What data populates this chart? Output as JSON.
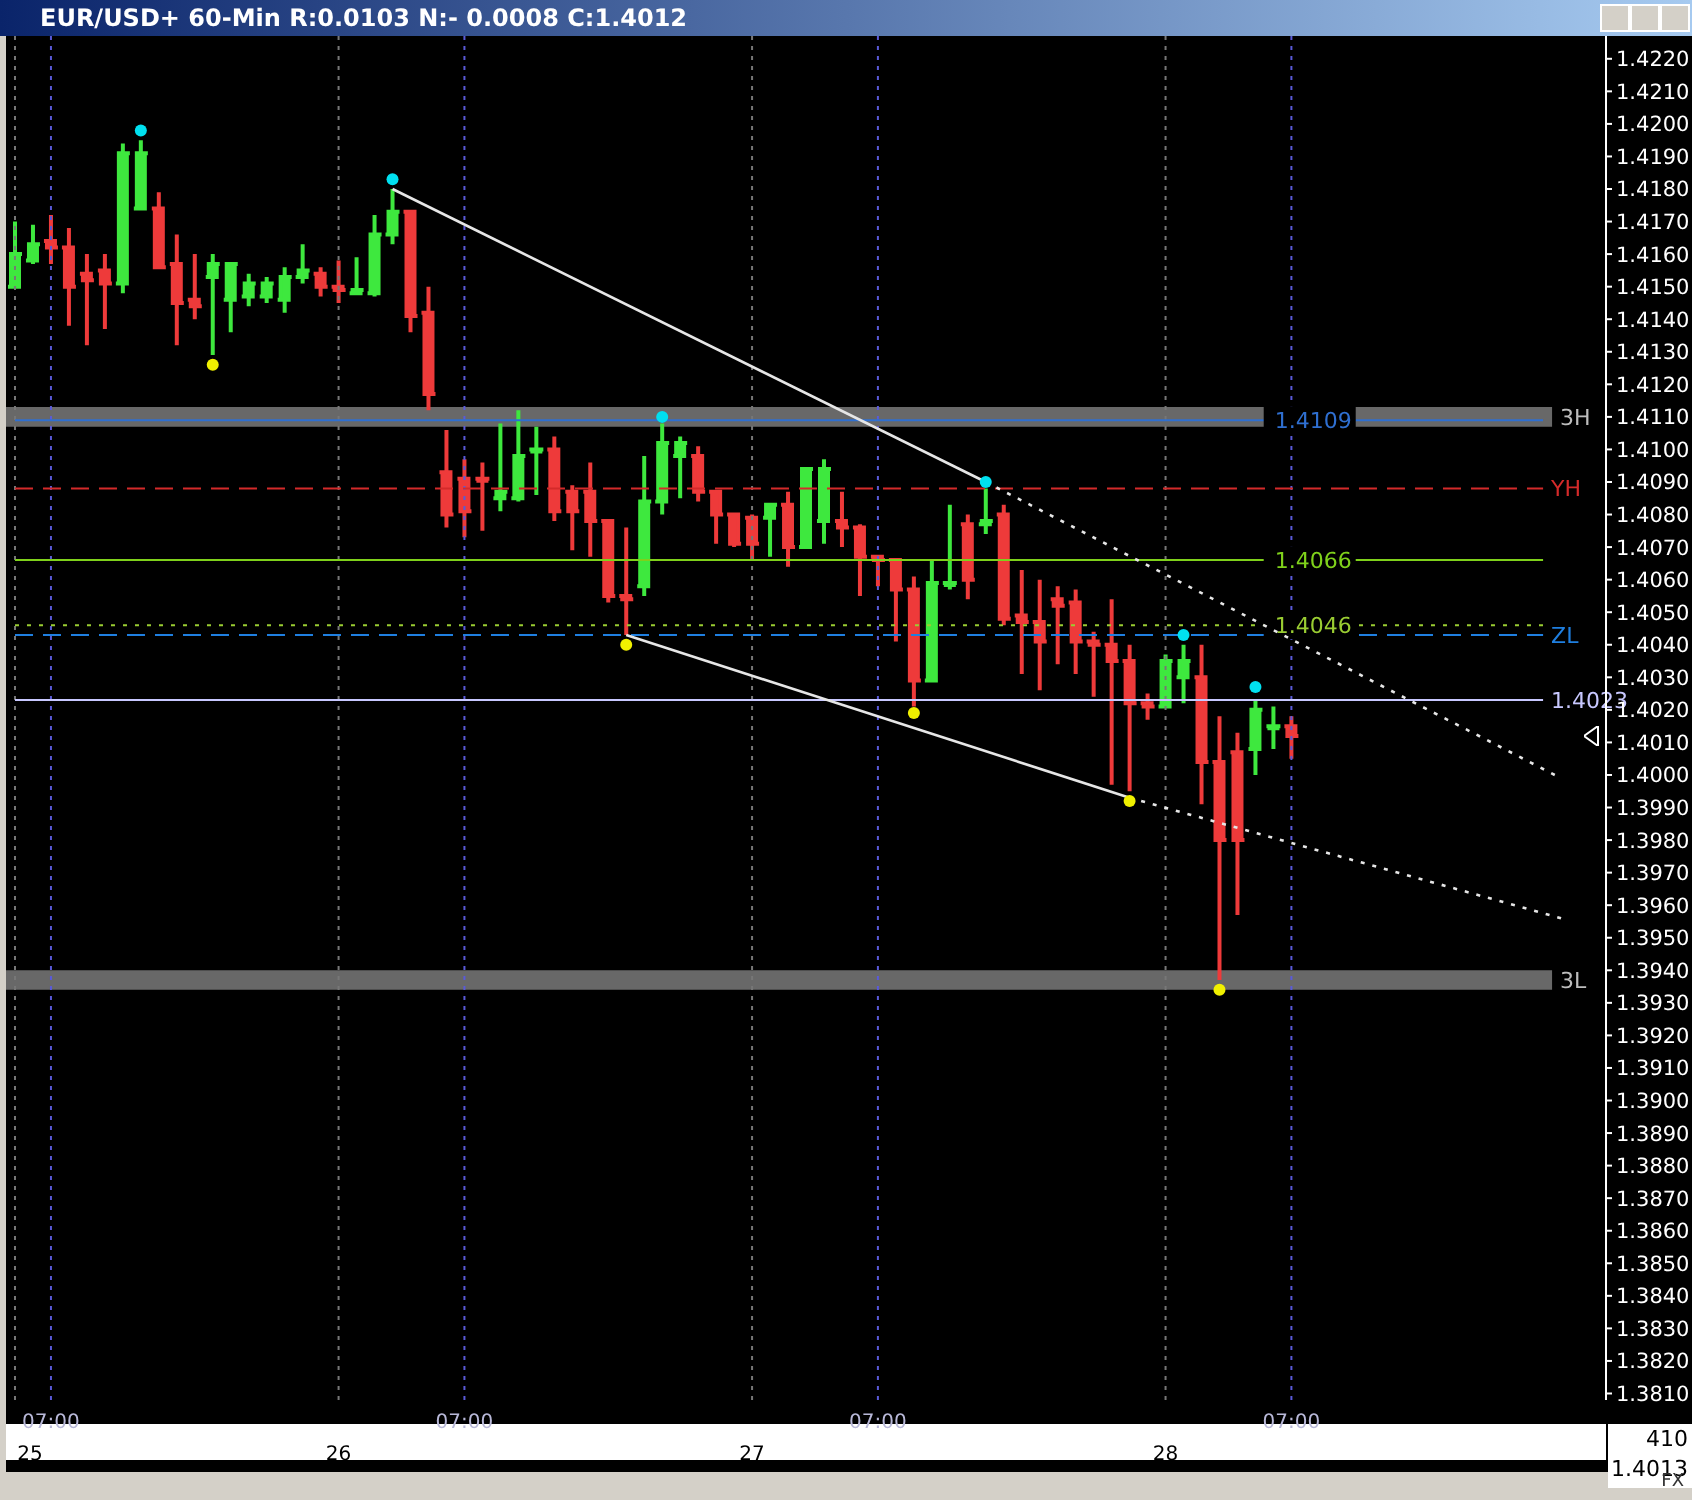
{
  "chart_data": {
    "type": "candlestick",
    "title": "EUR/USD+ 60-Min R:0.0103 N:- 0.0008 C:1.4012",
    "categories": [
      "25",
      null,
      "07:00",
      null,
      null,
      null,
      null,
      null,
      null,
      null,
      null,
      null,
      null,
      null,
      null,
      null,
      null,
      null,
      "26",
      null,
      null,
      null,
      null,
      null,
      null,
      "07:00",
      null,
      null,
      null,
      null,
      null,
      null,
      null,
      null,
      null,
      null,
      null,
      null,
      null,
      null,
      null,
      "27",
      null,
      null,
      null,
      null,
      null,
      null,
      "07:00",
      null,
      null,
      null,
      null,
      null,
      null,
      null,
      null,
      null,
      null,
      null,
      null,
      null,
      null,
      null,
      "28",
      null,
      null,
      null,
      null,
      null,
      null,
      "07:00",
      null,
      null,
      null,
      null,
      null,
      null,
      null,
      null,
      null,
      null,
      null,
      null,
      null,
      null,
      null,
      null,
      null
    ],
    "ohlc": [
      [
        1.415,
        1.417,
        1.415,
        1.416
      ],
      [
        1.4158,
        1.4169,
        1.4157,
        1.4163
      ],
      [
        1.4164,
        1.4172,
        1.4157,
        1.4162
      ],
      [
        1.4162,
        1.4168,
        1.4138,
        1.415
      ],
      [
        1.4154,
        1.416,
        1.4132,
        1.4152
      ],
      [
        1.4155,
        1.416,
        1.4137,
        1.4151
      ],
      [
        1.4151,
        1.4194,
        1.4148,
        1.4191
      ],
      [
        1.4174,
        1.4195,
        1.4174,
        1.4191
      ],
      [
        1.4174,
        1.4179,
        1.4156,
        1.4156
      ],
      [
        1.4157,
        1.4166,
        1.4132,
        1.4145
      ],
      [
        1.4146,
        1.416,
        1.414,
        1.4144
      ],
      [
        1.4153,
        1.416,
        1.4129,
        1.4157
      ],
      [
        1.4146,
        1.4157,
        1.4136,
        1.4157
      ],
      [
        1.4147,
        1.4154,
        1.4144,
        1.4151
      ],
      [
        1.4147,
        1.4153,
        1.4145,
        1.4151
      ],
      [
        1.4146,
        1.4156,
        1.4142,
        1.4153
      ],
      [
        1.4153,
        1.4163,
        1.4151,
        1.4155
      ],
      [
        1.4154,
        1.4156,
        1.4147,
        1.415
      ],
      [
        1.415,
        1.4158,
        1.4145,
        1.4149
      ],
      [
        1.4148,
        1.4159,
        1.4148,
        1.4149
      ],
      [
        1.4148,
        1.4172,
        1.4147,
        1.4166
      ],
      [
        1.4166,
        1.418,
        1.4163,
        1.4173
      ],
      [
        1.4173,
        1.4173,
        1.4136,
        1.4141
      ],
      [
        1.4142,
        1.415,
        1.4112,
        1.4117
      ],
      [
        1.4093,
        1.4106,
        1.4076,
        1.408
      ],
      [
        1.4091,
        1.4097,
        1.4073,
        1.4081
      ],
      [
        1.4091,
        1.4096,
        1.4075,
        1.4091
      ],
      [
        1.4085,
        1.4108,
        1.4081,
        1.4087
      ],
      [
        1.4085,
        1.4112,
        1.4084,
        1.4098
      ],
      [
        1.41,
        1.4107,
        1.4086,
        1.41
      ],
      [
        1.41,
        1.4104,
        1.4078,
        1.4081
      ],
      [
        1.4087,
        1.4089,
        1.4069,
        1.4081
      ],
      [
        1.4087,
        1.4096,
        1.4067,
        1.4078
      ],
      [
        1.4078,
        1.4078,
        1.4053,
        1.4055
      ],
      [
        1.4055,
        1.4076,
        1.4043,
        1.4054
      ],
      [
        1.4058,
        1.4098,
        1.4055,
        1.4084
      ],
      [
        1.4084,
        1.4108,
        1.408,
        1.4102
      ],
      [
        1.4098,
        1.4104,
        1.4085,
        1.4102
      ],
      [
        1.4098,
        1.4101,
        1.4084,
        1.4087
      ],
      [
        1.4087,
        1.4087,
        1.4071,
        1.408
      ],
      [
        1.408,
        1.408,
        1.407,
        1.4071
      ],
      [
        1.4079,
        1.408,
        1.4066,
        1.4071
      ],
      [
        1.4079,
        1.4083,
        1.4067,
        1.4083
      ],
      [
        1.4083,
        1.4087,
        1.4064,
        1.407
      ],
      [
        1.407,
        1.4094,
        1.407,
        1.4094
      ],
      [
        1.4078,
        1.4097,
        1.4071,
        1.4094
      ],
      [
        1.4078,
        1.4087,
        1.407,
        1.4076
      ],
      [
        1.4076,
        1.4077,
        1.4055,
        1.4067
      ],
      [
        1.4067,
        1.4067,
        1.4058,
        1.4066
      ],
      [
        1.4066,
        1.4066,
        1.4041,
        1.4057
      ],
      [
        1.4057,
        1.4061,
        1.4021,
        1.4029
      ],
      [
        1.4029,
        1.4066,
        1.4029,
        1.4059
      ],
      [
        1.4059,
        1.4083,
        1.4057,
        1.4059
      ],
      [
        1.4077,
        1.408,
        1.4054,
        1.406
      ],
      [
        1.4077,
        1.4088,
        1.4074,
        1.4078
      ],
      [
        1.408,
        1.4083,
        1.4046,
        1.4048
      ],
      [
        1.4049,
        1.4063,
        1.4031,
        1.4047
      ],
      [
        1.4047,
        1.406,
        1.4026,
        1.4041
      ],
      [
        1.4054,
        1.4058,
        1.4034,
        1.4052
      ],
      [
        1.4053,
        1.4057,
        1.4031,
        1.4041
      ],
      [
        1.4041,
        1.4044,
        1.4024,
        1.404
      ],
      [
        1.404,
        1.4054,
        1.3997,
        1.4035
      ],
      [
        1.4035,
        1.404,
        1.3995,
        1.4022
      ],
      [
        1.4022,
        1.4025,
        1.4017,
        1.4021
      ],
      [
        1.4021,
        1.4037,
        1.4021,
        1.4035
      ],
      [
        1.403,
        1.404,
        1.4022,
        1.4035
      ],
      [
        1.403,
        1.404,
        1.3991,
        1.4004
      ],
      [
        1.4004,
        1.4018,
        1.3937,
        1.398
      ],
      [
        1.4007,
        1.4013,
        1.3957,
        1.398
      ],
      [
        1.4008,
        1.4023,
        1.4,
        1.402
      ],
      [
        1.4015,
        1.4021,
        1.4008,
        1.4015
      ],
      [
        1.4015,
        1.4018,
        1.4005,
        1.4012
      ],
      null,
      null,
      null,
      null,
      null,
      null,
      null,
      null,
      null,
      null,
      null,
      null,
      null,
      null,
      null,
      null,
      null
    ],
    "colors": [
      "#3ee83e",
      "#3ee83e",
      "#ee3a3a",
      "#ee3a3a",
      "#ee3a3a",
      "#ee3a3a",
      "#3ee83e",
      "#3ee83e",
      "#ee3a3a",
      "#ee3a3a",
      "#ee3a3a",
      "#3ee83e",
      "#3ee83e",
      "#3ee83e",
      "#3ee83e",
      "#3ee83e",
      "#3ee83e",
      "#ee3a3a",
      "#ee3a3a",
      "#3ee83e",
      "#3ee83e",
      "#3ee83e",
      "#ee3a3a",
      "#ee3a3a",
      "#ee3a3a",
      "#ee3a3a",
      "#ee3a3a",
      "#3ee83e",
      "#3ee83e",
      "#3ee83e",
      "#ee3a3a",
      "#ee3a3a",
      "#ee3a3a",
      "#ee3a3a",
      "#ee3a3a",
      "#3ee83e",
      "#3ee83e",
      "#3ee83e",
      "#ee3a3a",
      "#ee3a3a",
      "#ee3a3a",
      "#ee3a3a",
      "#3ee83e",
      "#ee3a3a",
      "#3ee83e",
      "#3ee83e",
      "#ee3a3a",
      "#ee3a3a",
      "#ee3a3a",
      "#ee3a3a",
      "#ee3a3a",
      "#3ee83e",
      "#3ee83e",
      "#ee3a3a",
      "#3ee83e",
      "#ee3a3a",
      "#ee3a3a",
      "#ee3a3a",
      "#ee3a3a",
      "#ee3a3a",
      "#ee3a3a",
      "#ee3a3a",
      "#ee3a3a",
      "#ee3a3a",
      "#3ee83e",
      "#3ee83e",
      "#ee3a3a",
      "#ee3a3a",
      "#ee3a3a",
      "#3ee83e",
      "#3ee83e",
      "#ee3a3a",
      null,
      null,
      null,
      null,
      null,
      null,
      null,
      null,
      null,
      null,
      null,
      null,
      null,
      null,
      null,
      null,
      null
    ],
    "series": [
      {
        "type": "line",
        "color": "#e6e6e6",
        "line_style": "solid",
        "values": [
          null,
          null,
          null,
          null,
          null,
          null,
          null,
          null,
          null,
          null,
          null,
          null,
          null,
          null,
          null,
          null,
          null,
          null,
          null,
          null,
          null,
          1.418,
          null,
          null,
          null,
          null,
          null,
          null,
          null,
          null,
          null,
          null,
          null,
          null,
          null,
          null,
          null,
          null,
          null,
          null,
          null,
          null,
          null,
          null,
          null,
          null,
          null,
          null,
          null,
          null,
          null,
          null,
          null,
          null,
          1.409,
          null,
          null,
          null,
          null,
          null,
          null,
          null,
          null,
          null,
          null,
          null,
          null,
          null,
          null,
          null,
          null,
          null,
          null,
          null,
          null,
          null,
          null,
          null,
          null,
          null,
          null,
          null,
          null,
          null,
          null,
          null,
          null,
          null,
          null
        ]
      },
      {
        "type": "line",
        "color": "#e6e6e6",
        "line_style": "dotted",
        "values": [
          null,
          null,
          null,
          null,
          null,
          null,
          null,
          null,
          null,
          null,
          null,
          null,
          null,
          null,
          null,
          null,
          null,
          null,
          null,
          null,
          null,
          null,
          null,
          null,
          null,
          null,
          null,
          null,
          null,
          null,
          null,
          null,
          null,
          null,
          null,
          null,
          null,
          null,
          null,
          null,
          null,
          null,
          null,
          null,
          null,
          null,
          null,
          null,
          null,
          null,
          null,
          null,
          null,
          null,
          1.409,
          null,
          null,
          null,
          null,
          null,
          null,
          null,
          null,
          null,
          null,
          null,
          null,
          null,
          null,
          null,
          null,
          null,
          null,
          null,
          null,
          null,
          null,
          null,
          null,
          null,
          null,
          null,
          null,
          null,
          null,
          null,
          1.3999,
          null,
          null
        ]
      },
      {
        "type": "line",
        "color": "#e6e6e6",
        "line_style": "solid",
        "values": [
          null,
          null,
          null,
          null,
          null,
          null,
          null,
          null,
          null,
          null,
          null,
          null,
          null,
          null,
          null,
          null,
          null,
          null,
          null,
          null,
          null,
          null,
          null,
          null,
          null,
          null,
          null,
          null,
          null,
          null,
          null,
          null,
          null,
          null,
          1.4043,
          null,
          null,
          null,
          null,
          null,
          null,
          null,
          null,
          null,
          null,
          null,
          null,
          null,
          null,
          null,
          null,
          null,
          null,
          null,
          null,
          null,
          null,
          null,
          null,
          null,
          null,
          null,
          1.3993,
          null,
          null,
          null,
          null,
          null,
          null,
          null,
          null,
          null,
          null,
          null,
          null,
          null,
          null,
          null,
          null,
          null,
          null,
          null,
          null,
          null,
          null,
          null,
          null,
          null,
          null
        ]
      },
      {
        "type": "line",
        "color": "#e6e6e6",
        "line_style": "dotted",
        "values": [
          null,
          null,
          null,
          null,
          null,
          null,
          null,
          null,
          null,
          null,
          null,
          null,
          null,
          null,
          null,
          null,
          null,
          null,
          null,
          null,
          null,
          null,
          null,
          null,
          null,
          null,
          null,
          null,
          null,
          null,
          null,
          null,
          null,
          null,
          null,
          null,
          null,
          null,
          null,
          null,
          null,
          null,
          null,
          null,
          null,
          null,
          null,
          null,
          null,
          null,
          null,
          null,
          null,
          null,
          null,
          null,
          null,
          null,
          null,
          null,
          null,
          null,
          1.3993,
          null,
          null,
          null,
          null,
          null,
          null,
          null,
          null,
          null,
          null,
          null,
          null,
          null,
          null,
          null,
          null,
          null,
          null,
          null,
          null,
          null,
          null,
          null,
          1.3956,
          null,
          null
        ]
      },
      {
        "type": "scatter",
        "color": "#00e0f0",
        "values": [
          null,
          null,
          null,
          null,
          null,
          null,
          null,
          1.4198,
          null,
          null,
          null,
          null,
          null,
          null,
          null,
          null,
          null,
          null,
          null,
          null,
          null,
          1.4183,
          null,
          null,
          null,
          null,
          null,
          null,
          null,
          null,
          null,
          null,
          null,
          null,
          null,
          null,
          1.411,
          null,
          null,
          null,
          null,
          null,
          null,
          null,
          null,
          null,
          null,
          null,
          null,
          null,
          null,
          null,
          null,
          null,
          1.409,
          null,
          null,
          null,
          null,
          null,
          null,
          null,
          null,
          null,
          null,
          1.4043,
          null,
          null,
          null,
          1.4027,
          null,
          null,
          null,
          null,
          null,
          null,
          null,
          null,
          null,
          null,
          null,
          null,
          null,
          null,
          null,
          null,
          null,
          null,
          null
        ]
      },
      {
        "type": "scatter",
        "color": "#f0f000",
        "values": [
          null,
          null,
          null,
          null,
          null,
          null,
          null,
          null,
          null,
          null,
          null,
          1.4126,
          null,
          null,
          null,
          null,
          null,
          null,
          null,
          null,
          null,
          null,
          null,
          null,
          null,
          null,
          null,
          null,
          null,
          null,
          null,
          null,
          null,
          null,
          1.404,
          null,
          null,
          null,
          null,
          null,
          null,
          null,
          null,
          null,
          null,
          null,
          null,
          null,
          null,
          null,
          1.4019,
          null,
          null,
          null,
          null,
          null,
          null,
          null,
          null,
          null,
          null,
          null,
          1.3992,
          null,
          null,
          null,
          null,
          1.3934,
          null,
          null,
          null,
          null,
          null,
          null,
          null,
          null,
          null,
          null,
          null,
          null,
          null,
          null,
          null,
          null,
          null,
          null,
          null,
          null,
          null
        ]
      }
    ],
    "ylim": [
      1.3808,
      1.4227
    ],
    "yticks": [
      {
        "value": 1.381,
        "label": "1.3810"
      },
      {
        "value": 1.382,
        "label": "1.3820"
      },
      {
        "value": 1.383,
        "label": "1.3830"
      },
      {
        "value": 1.384,
        "label": "1.3840"
      },
      {
        "value": 1.385,
        "label": "1.3850"
      },
      {
        "value": 1.386,
        "label": "1.3860"
      },
      {
        "value": 1.387,
        "label": "1.3870"
      },
      {
        "value": 1.388,
        "label": "1.3880"
      },
      {
        "value": 1.389,
        "label": "1.3890"
      },
      {
        "value": 1.39,
        "label": "1.3900"
      },
      {
        "value": 1.391,
        "label": "1.3910"
      },
      {
        "value": 1.392,
        "label": "1.3920"
      },
      {
        "value": 1.393,
        "label": "1.3930"
      },
      {
        "value": 1.394,
        "label": "1.3940"
      },
      {
        "value": 1.395,
        "label": "1.3950"
      },
      {
        "value": 1.396,
        "label": "1.3960"
      },
      {
        "value": 1.397,
        "label": "1.3970"
      },
      {
        "value": 1.398,
        "label": "1.3980"
      },
      {
        "value": 1.399,
        "label": "1.3990"
      },
      {
        "value": 1.4,
        "label": "1.4000"
      },
      {
        "value": 1.401,
        "label": "1.4010"
      },
      {
        "value": 1.402,
        "label": "1.4020"
      },
      {
        "value": 1.403,
        "label": "1.4030"
      },
      {
        "value": 1.404,
        "label": "1.4040"
      },
      {
        "value": 1.405,
        "label": "1.4050"
      },
      {
        "value": 1.406,
        "label": "1.4060"
      },
      {
        "value": 1.407,
        "label": "1.4070"
      },
      {
        "value": 1.408,
        "label": "1.4080"
      },
      {
        "value": 1.409,
        "label": "1.4090"
      },
      {
        "value": 1.41,
        "label": "1.4100"
      },
      {
        "value": 1.411,
        "label": "1.4110"
      },
      {
        "value": 1.412,
        "label": "1.4120"
      },
      {
        "value": 1.413,
        "label": "1.4130"
      },
      {
        "value": 1.414,
        "label": "1.4140"
      },
      {
        "value": 1.415,
        "label": "1.4150"
      },
      {
        "value": 1.416,
        "label": "1.4160"
      },
      {
        "value": 1.417,
        "label": "1.4170"
      },
      {
        "value": 1.418,
        "label": "1.4180"
      },
      {
        "value": 1.419,
        "label": "1.4190"
      },
      {
        "value": 1.42,
        "label": "1.4200"
      },
      {
        "value": 1.421,
        "label": "1.4210"
      },
      {
        "value": 1.422,
        "label": "1.4220"
      }
    ],
    "grid": "x",
    "bands": [
      {
        "axis": "y",
        "from": 1.4107,
        "to": 1.4113,
        "label": "3H",
        "color": "#bdbdbd"
      },
      {
        "axis": "y",
        "from": 1.3934,
        "to": 1.394,
        "label": "3L",
        "color": "#bdbdbd"
      }
    ],
    "ref_lines": [
      {
        "axis": "y",
        "value": 1.4088,
        "label": "YH",
        "color": "#d42a2a",
        "line_style": "dashed"
      },
      {
        "axis": "y",
        "value": 1.4066,
        "label": "1.4066",
        "color": "#7fd11b",
        "line_style": "solid"
      },
      {
        "axis": "y",
        "value": 1.4043,
        "label": "ZL",
        "color": "#1f7fe0",
        "line_style": "dashed"
      },
      {
        "axis": "y",
        "value": 1.4046,
        "label": "1.4046",
        "color": "#9acd32",
        "line_style": "dotted"
      },
      {
        "axis": "y",
        "value": 1.4023,
        "label": "1.4023",
        "color": "#c8c8ff",
        "line_style": "solid"
      },
      {
        "axis": "y",
        "value": 1.4109,
        "label": "1.4109",
        "color": "#2f6fd0",
        "line_style": "solid"
      }
    ],
    "annotations": [
      "410",
      "1.4013",
      "FX"
    ]
  }
}
